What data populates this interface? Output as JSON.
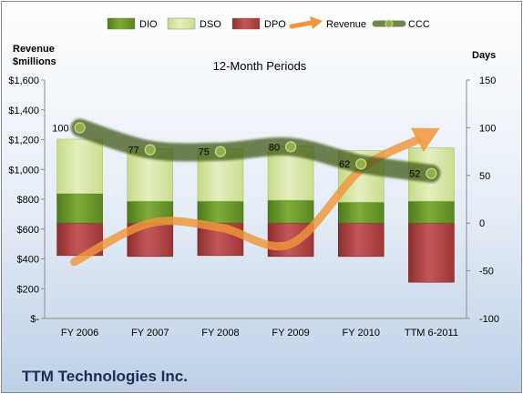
{
  "chart_data": {
    "type": "bar",
    "title": "12-Month Periods",
    "left_axis": {
      "label_line1": "Revenue",
      "label_line2": "$millions",
      "range": [
        0,
        1600
      ],
      "ticks": [
        "$-",
        "$200",
        "$400",
        "$600",
        "$800",
        "$1,000",
        "$1,200",
        "$1,400",
        "$1,600"
      ]
    },
    "right_axis": {
      "label": "Days",
      "range": [
        -100,
        150
      ],
      "ticks": [
        "-100",
        "-50",
        "0",
        "50",
        "100",
        "150"
      ]
    },
    "categories": [
      "FY 2006",
      "FY 2007",
      "FY 2008",
      "FY 2009",
      "FY 2010",
      "TTM 6-2011"
    ],
    "series": [
      {
        "name": "DIO",
        "axis": "days",
        "kind": "stacked-bar",
        "color": "#6f9a2f",
        "values": [
          31,
          23,
          23,
          24,
          22,
          23
        ]
      },
      {
        "name": "DSO",
        "axis": "days",
        "kind": "stacked-bar",
        "color": "#cfe29a",
        "values": [
          57,
          55,
          55,
          57,
          54,
          56
        ]
      },
      {
        "name": "DPO",
        "axis": "days",
        "kind": "negative-bar",
        "color": "#b04a4a",
        "values": [
          -34,
          -35,
          -34,
          -35,
          -35,
          -62
        ]
      },
      {
        "name": "Revenue",
        "axis": "revenue",
        "kind": "arrow",
        "color": "#f0963a",
        "values": [
          380,
          640,
          610,
          500,
          1000,
          1260
        ]
      },
      {
        "name": "CCC",
        "axis": "days",
        "kind": "line-markers",
        "color": "#4c6b1c",
        "values": [
          100,
          77,
          75,
          80,
          62,
          52
        ]
      }
    ],
    "data_labels": [
      "100",
      "77",
      "75",
      "80",
      "62",
      "52"
    ],
    "legend_position": "top",
    "grid": false
  },
  "company": "TTM Technologies Inc."
}
